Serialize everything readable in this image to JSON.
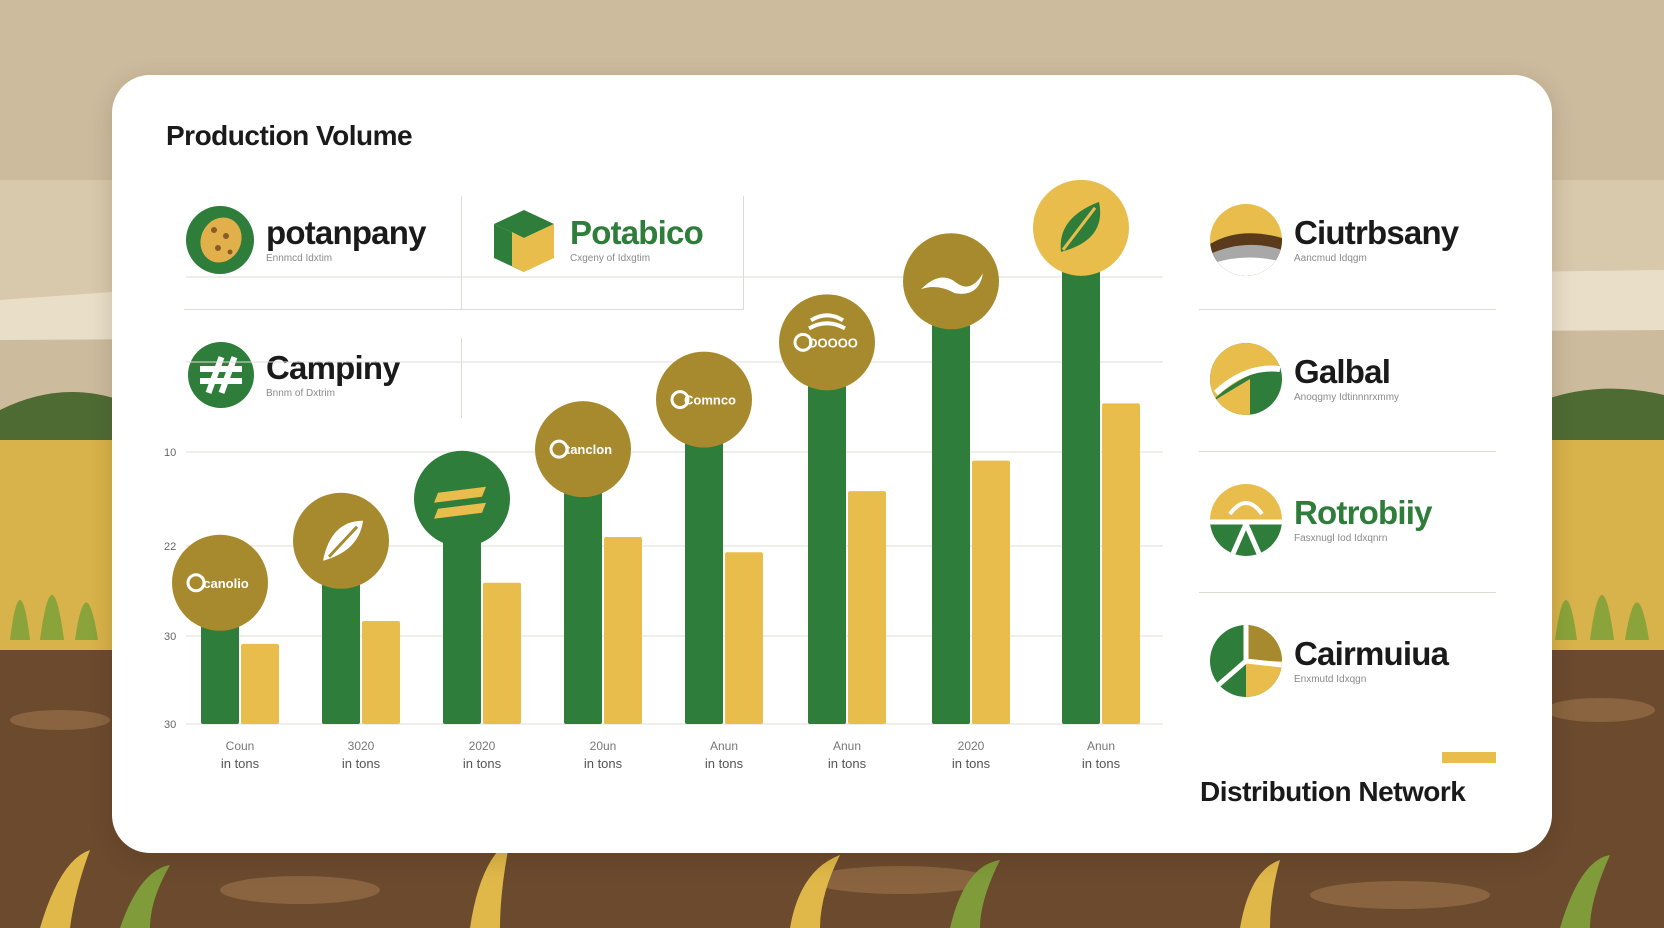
{
  "colors": {
    "green": "#2e7d3a",
    "gold": "#e8bd4c",
    "olive": "#a88a2e",
    "text_dark": "#1a1a1a"
  },
  "titles": {
    "production": "Production Volume",
    "distribution": "Distribution Network"
  },
  "left_brands": [
    {
      "name": "potanpany",
      "sub": "Ennmcd Idxtim",
      "icon": "potato-logo-icon"
    },
    {
      "name": "Potabico",
      "sub": "Cxgeny of Idxgtim",
      "icon": "cube-logo-icon"
    },
    {
      "name": "Campiny",
      "sub": "Bnnm of Dxtrim",
      "icon": "split-mark-logo-icon"
    }
  ],
  "right_brands": [
    {
      "name": "Ciutrbsany",
      "sub": "Aancmud Idqgm",
      "icon": "sunrise-logo-icon"
    },
    {
      "name": "Galbal",
      "sub": "Anoqgmy Idtinnnrxmmy",
      "icon": "globe-swoosh-logo-icon"
    },
    {
      "name": "Rotrobiiy",
      "sub": "Fasxnugl Iod Idxqnrn",
      "icon": "sun-field-logo-icon"
    },
    {
      "name": "Cairmuiua",
      "sub": "Enxmutd Idxqgn",
      "icon": "pinwheel-logo-icon"
    }
  ],
  "chart_data": {
    "type": "bar",
    "title": "Production Volume",
    "y_tick_labels": [
      "30",
      "30",
      "22",
      "10"
    ],
    "categories": [
      {
        "top": "Coun",
        "bottom": "in tons"
      },
      {
        "top": "3020",
        "bottom": "in tons"
      },
      {
        "top": "2020",
        "bottom": "in tons"
      },
      {
        "top": "20un",
        "bottom": "in tons"
      },
      {
        "top": "Anun",
        "bottom": "in tons"
      },
      {
        "top": "Anun",
        "bottom": "in tons"
      },
      {
        "top": "2020",
        "bottom": "in tons"
      },
      {
        "top": "Anun",
        "bottom": "in tons"
      }
    ],
    "series": [
      {
        "color": "#2e7d3a",
        "values": [
          13,
          18.5,
          24,
          30.5,
          37,
          44.5,
          52.5,
          59.5
        ]
      },
      {
        "color": "#e8bd4c",
        "values": [
          10.5,
          13.5,
          18.5,
          24.5,
          22.5,
          30.5,
          34.5,
          42
        ]
      }
    ],
    "ylim": [
      0,
      60
    ],
    "grid": true,
    "bar_badges": [
      {
        "label": "canolio",
        "color": "#a88a2e",
        "icon": "canola-badge-icon"
      },
      {
        "label": "",
        "color": "#a88a2e",
        "icon": "leaf-circle-badge-icon"
      },
      {
        "label": "",
        "color": "#2e7d3a",
        "icon": "stripes-badge-icon"
      },
      {
        "label": "tanclon",
        "color": "#a88a2e",
        "icon": "tanclon-badge-icon"
      },
      {
        "label": "Comnco",
        "color": "#a88a2e",
        "icon": "comnco-badge-icon"
      },
      {
        "label": "DOOOO",
        "color": "#a88a2e",
        "icon": "grain-badge-icon"
      },
      {
        "label": "",
        "color": "#a88a2e",
        "icon": "wave-badge-icon"
      },
      {
        "label": "",
        "color": "#e8bd4c",
        "icon": "leaf-badge-icon"
      }
    ]
  }
}
